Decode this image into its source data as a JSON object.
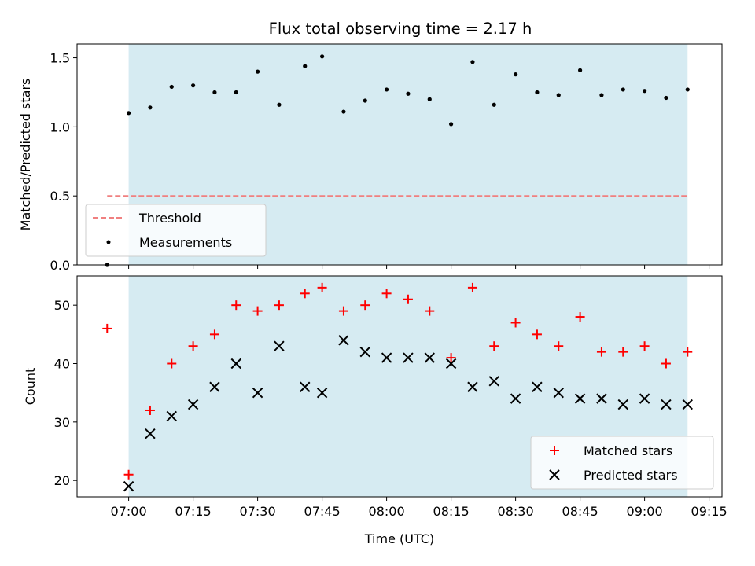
{
  "chart_data": [
    {
      "type": "scatter",
      "title": "Flux total observing time = 2.17 h",
      "ylabel": "Matched/Predicted stars",
      "ylim": [
        0,
        1.6
      ],
      "yticks": [
        0.0,
        0.5,
        1.0,
        1.5
      ],
      "ytick_labels": [
        "0.0",
        "0.5",
        "1.0",
        "1.5"
      ],
      "xlim": [
        "06:48",
        "09:18"
      ],
      "xticks": [
        "07:00",
        "07:15",
        "07:30",
        "07:45",
        "08:00",
        "08:15",
        "08:30",
        "08:45",
        "09:00",
        "09:15"
      ],
      "shaded_interval": [
        "07:00",
        "09:10"
      ],
      "shade_color": "#add8e6",
      "grid": false,
      "legend_position": "lower-left",
      "series": [
        {
          "name": "Threshold",
          "kind": "dashed-line",
          "color": "#f08080",
          "x": [
            "06:55",
            "09:10"
          ],
          "y": [
            0.5,
            0.5
          ]
        },
        {
          "name": "Measurements",
          "kind": "dots",
          "color": "#000000",
          "x": [
            "06:55",
            "07:00",
            "07:05",
            "07:10",
            "07:15",
            "07:20",
            "07:25",
            "07:30",
            "07:35",
            "07:41",
            "07:45",
            "07:50",
            "07:55",
            "08:00",
            "08:05",
            "08:10",
            "08:15",
            "08:20",
            "08:25",
            "08:30",
            "08:35",
            "08:40",
            "08:45",
            "08:50",
            "08:55",
            "09:00",
            "09:05",
            "09:10"
          ],
          "y": [
            0.0,
            1.1,
            1.14,
            1.29,
            1.3,
            1.25,
            1.25,
            1.4,
            1.16,
            1.44,
            1.51,
            1.11,
            1.19,
            1.27,
            1.24,
            1.2,
            1.02,
            1.47,
            1.16,
            1.38,
            1.25,
            1.23,
            1.41,
            1.23,
            1.27,
            1.26,
            1.21,
            1.27
          ]
        }
      ]
    },
    {
      "type": "scatter",
      "xlabel": "Time (UTC)",
      "ylabel": "Count",
      "ylim": [
        17.2,
        55
      ],
      "yticks": [
        20,
        30,
        40,
        50
      ],
      "ytick_labels": [
        "20",
        "30",
        "40",
        "50"
      ],
      "xlim": [
        "06:48",
        "09:18"
      ],
      "xticks": [
        "07:00",
        "07:15",
        "07:30",
        "07:45",
        "08:00",
        "08:15",
        "08:30",
        "08:45",
        "09:00",
        "09:15"
      ],
      "xtick_labels": [
        "07:00",
        "07:15",
        "07:30",
        "07:45",
        "08:00",
        "08:15",
        "08:30",
        "08:45",
        "09:00",
        "09:15"
      ],
      "shaded_interval": [
        "07:00",
        "09:10"
      ],
      "shade_color": "#add8e6",
      "grid": false,
      "legend_position": "lower-right",
      "series": [
        {
          "name": "Matched stars",
          "kind": "plus",
          "color": "#ff0000",
          "x": [
            "06:55",
            "07:00",
            "07:05",
            "07:10",
            "07:15",
            "07:20",
            "07:25",
            "07:30",
            "07:35",
            "07:41",
            "07:45",
            "07:50",
            "07:55",
            "08:00",
            "08:05",
            "08:10",
            "08:15",
            "08:20",
            "08:25",
            "08:30",
            "08:35",
            "08:40",
            "08:45",
            "08:50",
            "08:55",
            "09:00",
            "09:05",
            "09:10"
          ],
          "y": [
            46,
            21,
            32,
            40,
            43,
            45,
            50,
            49,
            50,
            52,
            53,
            49,
            50,
            52,
            51,
            49,
            41,
            53,
            43,
            47,
            45,
            43,
            48,
            42,
            42,
            43,
            40,
            42
          ]
        },
        {
          "name": "Predicted stars",
          "kind": "cross",
          "color": "#000000",
          "x": [
            "07:00",
            "07:05",
            "07:10",
            "07:15",
            "07:20",
            "07:25",
            "07:30",
            "07:35",
            "07:41",
            "07:45",
            "07:50",
            "07:55",
            "08:00",
            "08:05",
            "08:10",
            "08:15",
            "08:20",
            "08:25",
            "08:30",
            "08:35",
            "08:40",
            "08:45",
            "08:50",
            "08:55",
            "09:00",
            "09:05",
            "09:10"
          ],
          "y": [
            19,
            28,
            31,
            33,
            36,
            40,
            35,
            43,
            36,
            35,
            44,
            42,
            41,
            41,
            41,
            40,
            36,
            37,
            34,
            36,
            35,
            34,
            34,
            33,
            34,
            33,
            33
          ]
        }
      ]
    }
  ]
}
